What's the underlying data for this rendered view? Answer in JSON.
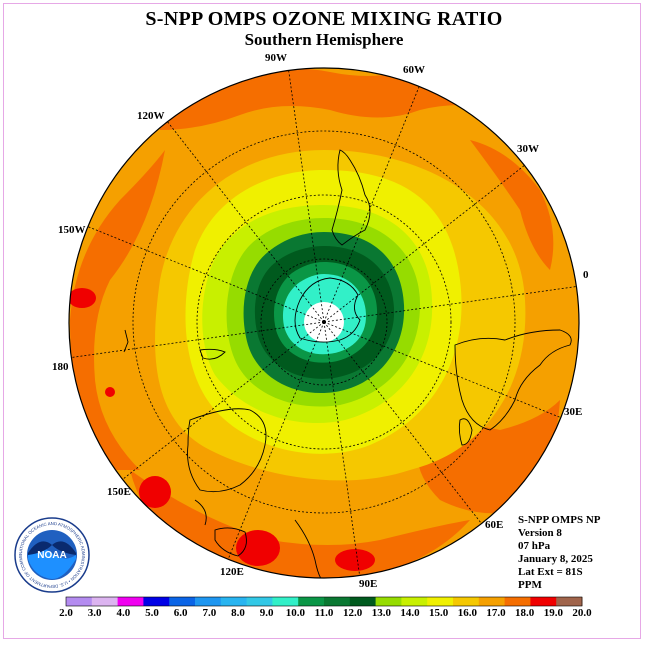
{
  "title": "S-NPP OMPS OZONE MIXING RATIO",
  "subtitle": "Southern Hemisphere",
  "longitude_labels": [
    "90W",
    "60W",
    "30W",
    "0",
    "30E",
    "60E",
    "90E",
    "120E",
    "150E",
    "180",
    "150W",
    "120W"
  ],
  "info": {
    "line1": "S-NPP OMPS NP",
    "line2": "Version 8",
    "line3": "07 hPa",
    "line4": "January 8, 2025",
    "line5": "Lat Ext = 81S",
    "line6": "PPM"
  },
  "logo": {
    "text": "NOAA",
    "ring_text": "NATIONAL OCEANIC AND ATMOSPHERIC ADMINISTRATION • U.S. DEPARTMENT OF COMMERCE"
  },
  "colorbar": {
    "tick_labels": [
      "2.0",
      "3.0",
      "4.0",
      "5.0",
      "6.0",
      "7.0",
      "8.0",
      "9.0",
      "10.0",
      "11.0",
      "12.0",
      "13.0",
      "14.0",
      "15.0",
      "16.0",
      "17.0",
      "18.0",
      "19.0",
      "20.0"
    ],
    "colors": [
      "#b48cf0",
      "#dcb4f0",
      "#f000f0",
      "#0000e6",
      "#0a64e6",
      "#1e96f0",
      "#28b4f0",
      "#32c8e6",
      "#32f0c8",
      "#0a9646",
      "#0a7832",
      "#005a1e",
      "#96dc00",
      "#c8f000",
      "#f0f000",
      "#f5c800",
      "#f5a000",
      "#f56e00",
      "#f00000",
      "#a0644b"
    ]
  }
}
